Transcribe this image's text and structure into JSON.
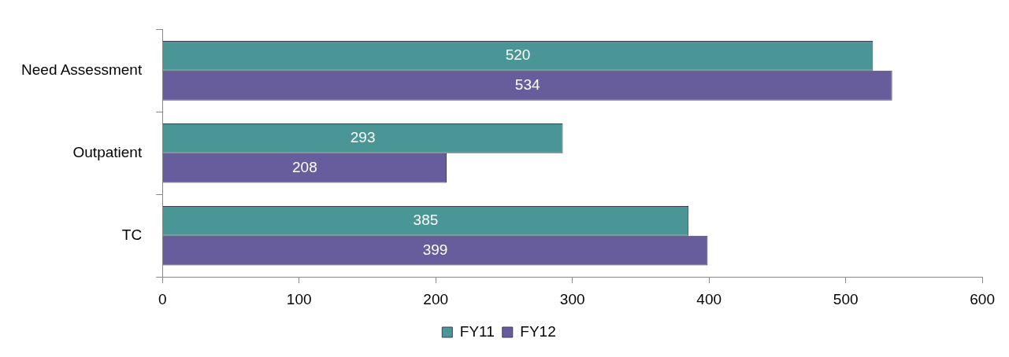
{
  "chart_data": {
    "type": "bar",
    "orientation": "horizontal",
    "categories": [
      "Need Assessment",
      "Outpatient",
      "TC"
    ],
    "series": [
      {
        "name": "FY11",
        "color": "#4a9696",
        "values": [
          520,
          293,
          385
        ]
      },
      {
        "name": "FY12",
        "color": "#675d9c",
        "values": [
          534,
          208,
          399
        ]
      }
    ],
    "xlim": [
      0,
      600
    ],
    "xticks": [
      0,
      100,
      200,
      300,
      400,
      500,
      600
    ],
    "data_labels": true,
    "grid": false,
    "legend": "bottom"
  }
}
